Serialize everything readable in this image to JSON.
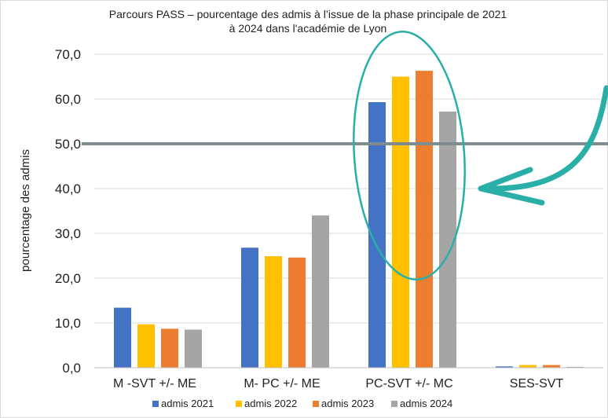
{
  "chart_data": {
    "type": "bar",
    "title_line1": "Parcours PASS – pourcentage des admis à l’issue de la phase principale de 2021",
    "title_line2": "à 2024 dans l'académie de Lyon",
    "ylabel": "pourcentage  des admis",
    "xlabel": "",
    "ylim": [
      0,
      70
    ],
    "yticks": [
      "0,0",
      "10,0",
      "20,0",
      "30,0",
      "40,0",
      "50,0",
      "60,0",
      "70,0"
    ],
    "categories": [
      "M -SVT +/- ME",
      "M- PC +/- ME",
      "PC-SVT +/- MC",
      "SES-SVT"
    ],
    "series": [
      {
        "name": "admis 2021",
        "color": "#4472C4",
        "values": [
          13.4,
          26.8,
          59.3,
          0.3
        ]
      },
      {
        "name": "admis 2022",
        "color": "#FFC000",
        "values": [
          9.7,
          24.9,
          65.0,
          0.6
        ]
      },
      {
        "name": "admis 2023",
        "color": "#ED7D31",
        "values": [
          8.7,
          24.6,
          66.3,
          0.6
        ]
      },
      {
        "name": "admis 2024",
        "color": "#A5A5A5",
        "values": [
          8.5,
          34.0,
          57.2,
          0.2
        ]
      }
    ],
    "reference_line": {
      "value": 50,
      "color": "#7F8C8D"
    },
    "annotation_color": "#2AAFA8",
    "grid": true,
    "legend_position": "bottom"
  }
}
